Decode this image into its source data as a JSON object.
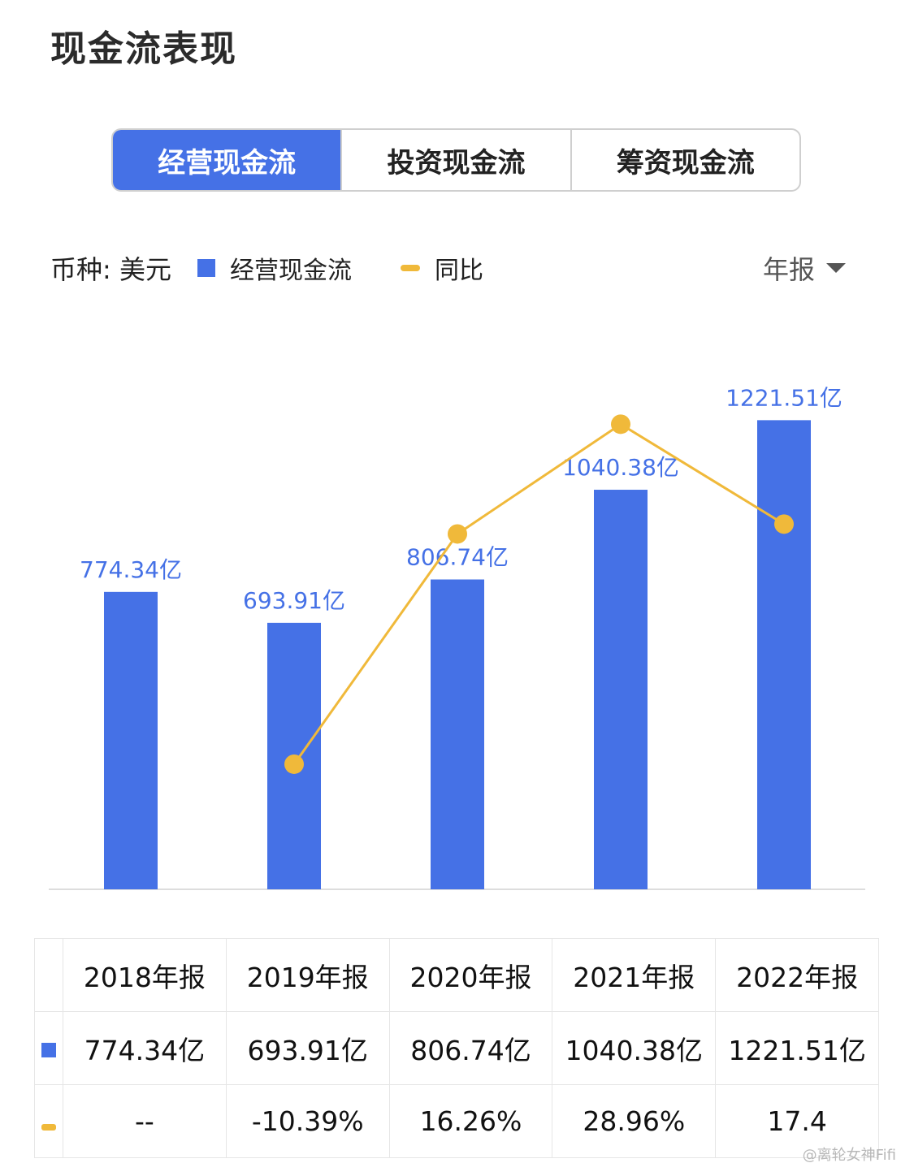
{
  "title": "现金流表现",
  "tabs": [
    {
      "label": "经营现金流",
      "active": true
    },
    {
      "label": "投资现金流",
      "active": false
    },
    {
      "label": "筹资现金流",
      "active": false
    }
  ],
  "currency_label": "币种: 美元",
  "legend": {
    "bar": "经营现金流",
    "line": "同比"
  },
  "period_selector": "年报",
  "colors": {
    "bar": "#4571e6",
    "line": "#f0b93a",
    "negative": "#3aa845",
    "positive": "#e84a4a"
  },
  "chart_data": {
    "type": "bar",
    "categories": [
      "2018年报",
      "2019年报",
      "2020年报",
      "2021年报",
      "2022年报"
    ],
    "series": [
      {
        "name": "经营现金流",
        "type": "bar",
        "values": [
          774.34,
          693.91,
          806.74,
          1040.38,
          1221.51
        ],
        "labels": [
          "774.34亿",
          "693.91亿",
          "806.74亿",
          "1040.38亿",
          "1221.51亿"
        ]
      },
      {
        "name": "同比",
        "type": "line",
        "values": [
          null,
          -10.39,
          16.26,
          28.96,
          17.4
        ]
      }
    ],
    "ylim": [
      0,
      1400
    ]
  },
  "table": {
    "headers": [
      "2018年报",
      "2019年报",
      "2020年报",
      "2021年报",
      "2022年报"
    ],
    "values": [
      "774.34亿",
      "693.91亿",
      "806.74亿",
      "1040.38亿",
      "1221.51亿"
    ],
    "yoy": [
      "--",
      "-10.39%",
      "16.26%",
      "28.96%",
      "17.4"
    ]
  },
  "watermark": "@离轮女神Fifi"
}
